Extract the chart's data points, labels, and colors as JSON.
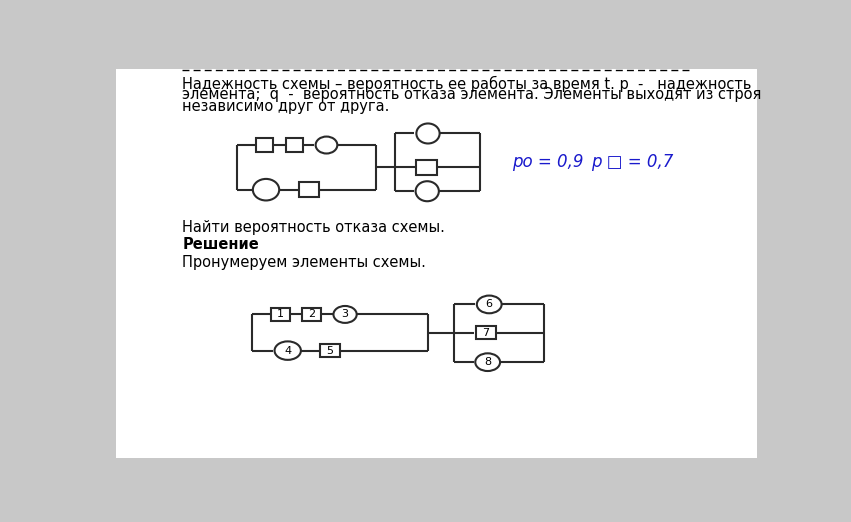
{
  "bg_color": "#c8c8c8",
  "page_bg": "#ffffff",
  "text_color": "#000000",
  "header_text_line1": "Надежность схемы – вероятность ее работы за время t. p  -   надежность",
  "header_text_line2": "элемента;  q  -  вероятность отказа элемента. Элементы выходят из строя",
  "header_text_line3": "независимо друг от друга.",
  "task_text": "Найти вероятность отказа схемы.",
  "solution_bold": "Решение",
  "solution_text": "Пронумеруем элементы схемы.",
  "po_label": "pо = 0,9",
  "psq_label": "p □ = 0,7",
  "font_size_main": 10.5,
  "circuit_color": "#2a2a2a"
}
